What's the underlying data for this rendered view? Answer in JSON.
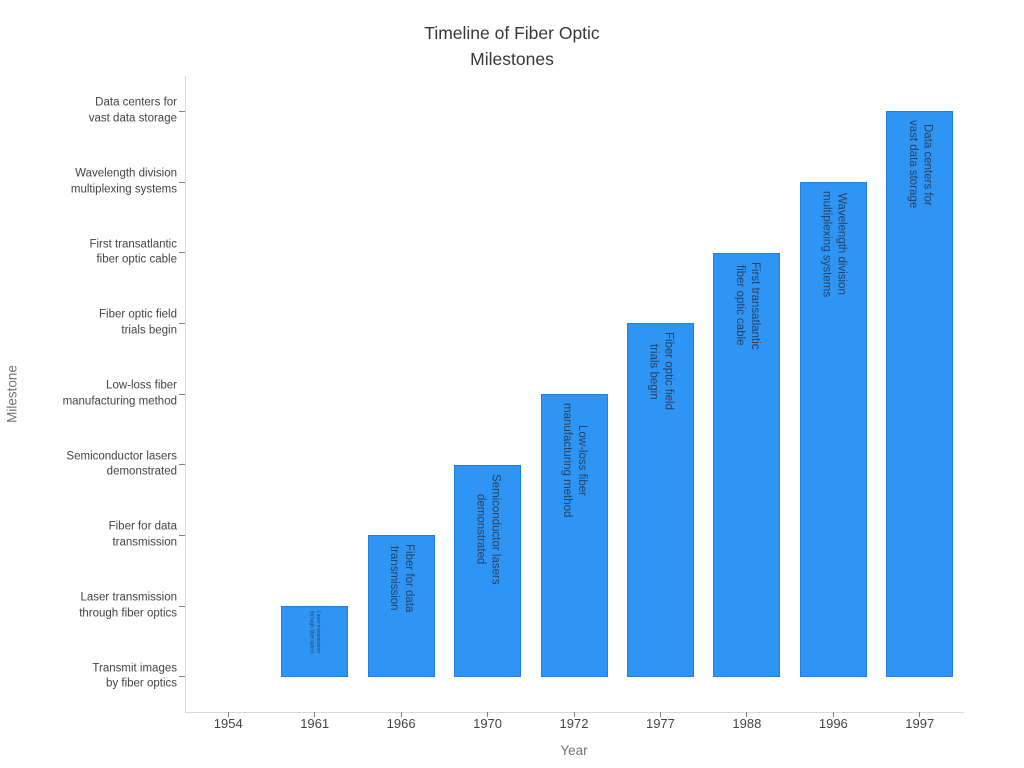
{
  "title": {
    "line1": "Timeline of Fiber Optic",
    "line2": "Milestones"
  },
  "chart_data": {
    "type": "bar",
    "orientation": "vertical",
    "title": "Timeline of Fiber Optic Milestones",
    "xlabel": "Year",
    "ylabel": "Milestone",
    "grid": "off",
    "legend": "none",
    "bar_color": "#2E95F4",
    "bar_label_color": "#2a3f5f",
    "x_categories": [
      "1954",
      "1961",
      "1966",
      "1970",
      "1972",
      "1977",
      "1988",
      "1996",
      "1997"
    ],
    "y_categories": [
      "Transmit images\nby fiber optics",
      "Laser transmission\nthrough fiber optics",
      "Fiber for data\ntransmission",
      "Semiconductor lasers\ndemonstrated",
      "Low-loss fiber\nmanufacturing method",
      "Fiber optic field\ntrials begin",
      "First transatlantic\nfiber optic cable",
      "Wavelength division\nmultiplexing systems",
      "Data centers for\nvast data storage"
    ],
    "points": [
      {
        "year": "1954",
        "milestone": "Transmit images by fiber optics",
        "level": 0
      },
      {
        "year": "1961",
        "milestone": "Laser transmission through fiber optics",
        "level": 1
      },
      {
        "year": "1966",
        "milestone": "Fiber for data transmission",
        "level": 2
      },
      {
        "year": "1970",
        "milestone": "Semiconductor lasers demonstrated",
        "level": 3
      },
      {
        "year": "1972",
        "milestone": "Low-loss fiber manufacturing method",
        "level": 4
      },
      {
        "year": "1977",
        "milestone": "Fiber optic field trials begin",
        "level": 5
      },
      {
        "year": "1988",
        "milestone": "First transatlantic fiber optic cable",
        "level": 6
      },
      {
        "year": "1996",
        "milestone": "Wavelength division multiplexing systems",
        "level": 7
      },
      {
        "year": "1997",
        "milestone": "Data centers for vast data storage",
        "level": 8
      }
    ]
  }
}
